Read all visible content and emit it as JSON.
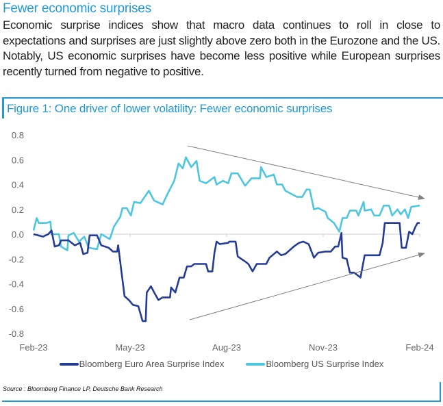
{
  "heading": "Fewer economic surprises",
  "body": "Economic surprise indices show that macro data continues to roll in close to expectations and surprises are just slightly above zero both in the Eurozone and the US. Notably, US economic surprises have become less positive while European surprises recently turned from negative to positive.",
  "figure_title": "Figure 1: One driver of lower volatility: Fewer economic surprises",
  "source": "Source : Bloomberg Finance LP, Deutsche Bank Research",
  "colors": {
    "accent": "#1f9ad6",
    "euro": "#253c96",
    "us": "#4dc6e0",
    "arrow": "#808080"
  },
  "chart_data": {
    "type": "line",
    "title": "",
    "xlabel": "",
    "ylabel": "",
    "xlim": [
      "2023-02-01",
      "2024-02-01"
    ],
    "ylim": [
      -0.8,
      0.8
    ],
    "x_ticks": [
      "Feb-23",
      "May-23",
      "Aug-23",
      "Nov-23",
      "Feb-24"
    ],
    "y_ticks": [
      "0.8",
      "0.6",
      "0.4",
      "0.2",
      "0.0",
      "-0.2",
      "-0.4",
      "-0.6",
      "-0.8"
    ],
    "grid": false,
    "legend_position": "bottom",
    "annotations": [
      "arrow pointing down-right above series (converging)",
      "arrow pointing up-right below series (converging)"
    ],
    "series": [
      {
        "name": "Bloomberg Euro Area Surprise Index",
        "color": "#253c96",
        "points": [
          [
            "2023-02-01",
            0.0
          ],
          [
            "2023-02-10",
            -0.02
          ],
          [
            "2023-02-15",
            0.0
          ],
          [
            "2023-02-18",
            0.03
          ],
          [
            "2023-02-21",
            -0.1
          ],
          [
            "2023-02-25",
            -0.09
          ],
          [
            "2023-02-27",
            -0.05
          ],
          [
            "2023-03-06",
            -0.05
          ],
          [
            "2023-03-12",
            -0.09
          ],
          [
            "2023-03-17",
            -0.07
          ],
          [
            "2023-03-20",
            -0.16
          ],
          [
            "2023-03-24",
            -0.15
          ],
          [
            "2023-03-26",
            -0.01
          ],
          [
            "2023-04-02",
            -0.01
          ],
          [
            "2023-04-06",
            -0.09
          ],
          [
            "2023-04-13",
            -0.11
          ],
          [
            "2023-04-17",
            -0.14
          ],
          [
            "2023-04-21",
            -0.14
          ],
          [
            "2023-04-22",
            -0.09
          ],
          [
            "2023-04-25",
            -0.3
          ],
          [
            "2023-04-28",
            -0.5
          ],
          [
            "2023-05-02",
            -0.53
          ],
          [
            "2023-05-06",
            -0.57
          ],
          [
            "2023-05-11",
            -0.58
          ],
          [
            "2023-05-15",
            -0.7
          ],
          [
            "2023-05-18",
            -0.7
          ],
          [
            "2023-05-19",
            -0.47
          ],
          [
            "2023-05-23",
            -0.42
          ],
          [
            "2023-05-26",
            -0.47
          ],
          [
            "2023-05-30",
            -0.53
          ],
          [
            "2023-06-03",
            -0.51
          ],
          [
            "2023-06-10",
            -0.51
          ],
          [
            "2023-06-11",
            -0.43
          ],
          [
            "2023-06-15",
            -0.47
          ],
          [
            "2023-06-19",
            -0.35
          ],
          [
            "2023-06-23",
            -0.35
          ],
          [
            "2023-06-26",
            -0.26
          ],
          [
            "2023-06-30",
            -0.26
          ],
          [
            "2023-07-03",
            -0.24
          ],
          [
            "2023-07-14",
            -0.24
          ],
          [
            "2023-07-16",
            -0.3
          ],
          [
            "2023-07-20",
            -0.3
          ],
          [
            "2023-07-22",
            -0.15
          ],
          [
            "2023-07-24",
            -0.06
          ],
          [
            "2023-07-27",
            -0.08
          ],
          [
            "2023-08-04",
            -0.07
          ],
          [
            "2023-08-05",
            -0.06
          ],
          [
            "2023-08-11",
            -0.06
          ],
          [
            "2023-08-13",
            -0.18
          ],
          [
            "2023-08-20",
            -0.22
          ],
          [
            "2023-08-23",
            -0.24
          ],
          [
            "2023-08-27",
            -0.3
          ],
          [
            "2023-08-31",
            -0.24
          ],
          [
            "2023-09-09",
            -0.24
          ],
          [
            "2023-09-12",
            -0.19
          ],
          [
            "2023-09-19",
            -0.14
          ],
          [
            "2023-09-23",
            -0.17
          ],
          [
            "2023-09-27",
            -0.16
          ],
          [
            "2023-10-05",
            -0.1
          ],
          [
            "2023-10-10",
            -0.07
          ],
          [
            "2023-10-14",
            -0.06
          ],
          [
            "2023-10-19",
            -0.08
          ],
          [
            "2023-10-24",
            -0.19
          ],
          [
            "2023-10-28",
            -0.15
          ],
          [
            "2023-11-04",
            -0.14
          ],
          [
            "2023-11-09",
            -0.14
          ],
          [
            "2023-11-13",
            -0.1
          ],
          [
            "2023-11-16",
            -0.1
          ],
          [
            "2023-11-19",
            0.01
          ],
          [
            "2023-11-20",
            -0.19
          ],
          [
            "2023-11-24",
            -0.2
          ],
          [
            "2023-11-27",
            -0.31
          ],
          [
            "2023-12-01",
            -0.31
          ],
          [
            "2023-12-07",
            -0.35
          ],
          [
            "2023-12-11",
            -0.17
          ],
          [
            "2023-12-25",
            -0.17
          ],
          [
            "2023-12-28",
            -0.07
          ],
          [
            "2023-12-30",
            0.09
          ],
          [
            "2024-01-02",
            0.09
          ],
          [
            "2024-01-13",
            0.09
          ],
          [
            "2024-01-15",
            -0.11
          ],
          [
            "2024-01-19",
            -0.11
          ],
          [
            "2024-01-22",
            0.02
          ],
          [
            "2024-01-25",
            0.0
          ],
          [
            "2024-01-28",
            0.06
          ],
          [
            "2024-01-30",
            0.09
          ],
          [
            "2024-02-01",
            0.09
          ]
        ]
      },
      {
        "name": "Bloomberg US Surprise Index",
        "color": "#4dc6e0",
        "points": [
          [
            "2023-02-01",
            0.03
          ],
          [
            "2023-02-04",
            0.13
          ],
          [
            "2023-02-06",
            0.09
          ],
          [
            "2023-02-13",
            0.09
          ],
          [
            "2023-02-17",
            0.1
          ],
          [
            "2023-02-18",
            0.0
          ],
          [
            "2023-02-25",
            0.0
          ],
          [
            "2023-02-27",
            -0.1
          ],
          [
            "2023-03-05",
            -0.13
          ],
          [
            "2023-03-06",
            -0.01
          ],
          [
            "2023-03-11",
            0.01
          ],
          [
            "2023-03-16",
            -0.06
          ],
          [
            "2023-03-21",
            -0.02
          ],
          [
            "2023-03-25",
            -0.11
          ],
          [
            "2023-04-02",
            -0.12
          ],
          [
            "2023-04-06",
            0.0
          ],
          [
            "2023-04-14",
            -0.04
          ],
          [
            "2023-04-18",
            0.06
          ],
          [
            "2023-04-24",
            0.14
          ],
          [
            "2023-04-26",
            0.21
          ],
          [
            "2023-04-30",
            0.21
          ],
          [
            "2023-05-04",
            0.15
          ],
          [
            "2023-05-07",
            0.26
          ],
          [
            "2023-05-13",
            0.25
          ],
          [
            "2023-05-21",
            0.35
          ],
          [
            "2023-05-26",
            0.27
          ],
          [
            "2023-06-03",
            0.24
          ],
          [
            "2023-06-08",
            0.33
          ],
          [
            "2023-06-14",
            0.43
          ],
          [
            "2023-06-18",
            0.57
          ],
          [
            "2023-06-22",
            0.53
          ],
          [
            "2023-06-25",
            0.62
          ],
          [
            "2023-06-30",
            0.54
          ],
          [
            "2023-07-05",
            0.59
          ],
          [
            "2023-07-08",
            0.43
          ],
          [
            "2023-07-14",
            0.41
          ],
          [
            "2023-07-22",
            0.46
          ],
          [
            "2023-07-24",
            0.4
          ],
          [
            "2023-07-30",
            0.43
          ],
          [
            "2023-08-04",
            0.41
          ],
          [
            "2023-08-07",
            0.49
          ],
          [
            "2023-08-13",
            0.49
          ],
          [
            "2023-08-20",
            0.39
          ],
          [
            "2023-08-26",
            0.45
          ],
          [
            "2023-09-03",
            0.45
          ],
          [
            "2023-09-04",
            0.54
          ],
          [
            "2023-09-09",
            0.46
          ],
          [
            "2023-09-16",
            0.48
          ],
          [
            "2023-09-19",
            0.4
          ],
          [
            "2023-09-24",
            0.4
          ],
          [
            "2023-09-27",
            0.35
          ],
          [
            "2023-10-08",
            0.3
          ],
          [
            "2023-10-13",
            0.3
          ],
          [
            "2023-10-17",
            0.36
          ],
          [
            "2023-10-20",
            0.36
          ],
          [
            "2023-10-24",
            0.2
          ],
          [
            "2023-10-28",
            0.21
          ],
          [
            "2023-11-04",
            0.18
          ],
          [
            "2023-11-06",
            0.13
          ],
          [
            "2023-11-12",
            0.09
          ],
          [
            "2023-11-17",
            0.02
          ],
          [
            "2023-11-20",
            0.13
          ],
          [
            "2023-11-24",
            0.13
          ],
          [
            "2023-11-27",
            0.19
          ],
          [
            "2023-12-03",
            0.19
          ],
          [
            "2023-12-05",
            0.15
          ],
          [
            "2023-12-10",
            0.26
          ],
          [
            "2023-12-11",
            0.19
          ],
          [
            "2023-12-17",
            0.2
          ],
          [
            "2023-12-20",
            0.15
          ],
          [
            "2023-12-25",
            0.15
          ],
          [
            "2023-12-29",
            0.23
          ],
          [
            "2024-01-03",
            0.23
          ],
          [
            "2024-01-06",
            0.15
          ],
          [
            "2024-01-11",
            0.2
          ],
          [
            "2024-01-14",
            0.16
          ],
          [
            "2024-01-18",
            0.2
          ],
          [
            "2024-01-21",
            0.13
          ],
          [
            "2024-01-24",
            0.22
          ],
          [
            "2024-02-01",
            0.23
          ]
        ]
      }
    ]
  }
}
